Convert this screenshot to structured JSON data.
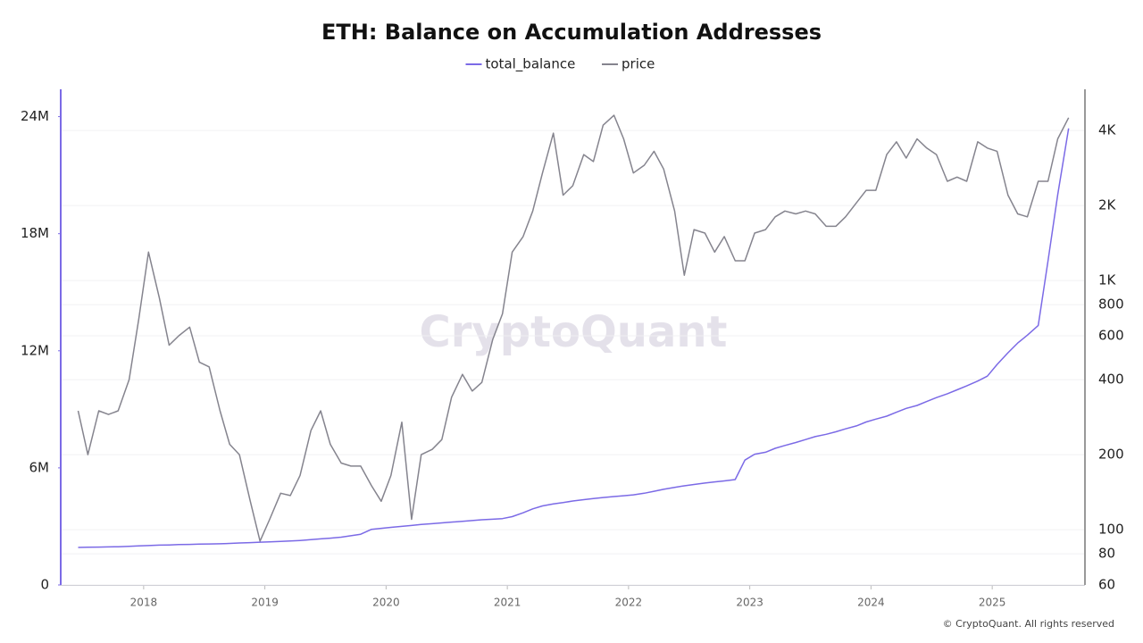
{
  "chart_data": {
    "type": "line",
    "title": "ETH: Balance on Accumulation Addresses",
    "watermark": "CryptoQuant",
    "credit": "© CryptoQuant. All rights reserved",
    "legend": "top",
    "grid": "y2",
    "y2scale": "log",
    "x": [
      2017.46,
      2017.54,
      2017.63,
      2017.71,
      2017.79,
      2017.88,
      2017.96,
      2018.04,
      2018.13,
      2018.21,
      2018.29,
      2018.38,
      2018.46,
      2018.54,
      2018.63,
      2018.71,
      2018.79,
      2018.88,
      2018.96,
      2019.04,
      2019.13,
      2019.21,
      2019.29,
      2019.38,
      2019.46,
      2019.54,
      2019.63,
      2019.71,
      2019.79,
      2019.88,
      2019.96,
      2020.04,
      2020.13,
      2020.21,
      2020.29,
      2020.38,
      2020.46,
      2020.54,
      2020.63,
      2020.71,
      2020.79,
      2020.88,
      2020.96,
      2021.04,
      2021.13,
      2021.21,
      2021.29,
      2021.38,
      2021.46,
      2021.54,
      2021.63,
      2021.71,
      2021.79,
      2021.88,
      2021.96,
      2022.04,
      2022.13,
      2022.21,
      2022.29,
      2022.38,
      2022.46,
      2022.54,
      2022.63,
      2022.71,
      2022.79,
      2022.88,
      2022.96,
      2023.04,
      2023.13,
      2023.21,
      2023.29,
      2023.38,
      2023.46,
      2023.54,
      2023.63,
      2023.71,
      2023.79,
      2023.88,
      2023.96,
      2024.04,
      2024.13,
      2024.21,
      2024.29,
      2024.38,
      2024.46,
      2024.54,
      2024.63,
      2024.71,
      2024.79,
      2024.88,
      2024.96,
      2025.04,
      2025.13,
      2025.21,
      2025.29,
      2025.38,
      2025.46,
      2025.54,
      2025.63
    ],
    "xlim": [
      2017.316,
      2025.765
    ],
    "xticks": [
      2018,
      2019,
      2020,
      2021,
      2022,
      2023,
      2024,
      2025
    ],
    "ylim": [
      0,
      25400000
    ],
    "yticks": [
      0,
      {
        "value": 6000000,
        "label": "6M"
      },
      {
        "value": 12000000,
        "label": "12M"
      },
      {
        "value": 18000000,
        "label": "18M"
      },
      {
        "value": 24000000,
        "label": "24M"
      }
    ],
    "y2lim": [
      60,
      5850
    ],
    "y2ticks": [
      60,
      80,
      100,
      200,
      400,
      600,
      800,
      {
        "value": 1000,
        "label": "1K"
      },
      {
        "value": 2000,
        "label": "2K"
      },
      {
        "value": 4000,
        "label": "4K"
      }
    ],
    "series": [
      {
        "name": "total_balance",
        "color": "#7b6ae6",
        "axis": "y",
        "values": [
          1920000,
          1930000,
          1940000,
          1950000,
          1960000,
          1980000,
          2000000,
          2020000,
          2040000,
          2050000,
          2070000,
          2080000,
          2090000,
          2100000,
          2110000,
          2130000,
          2150000,
          2170000,
          2190000,
          2210000,
          2230000,
          2250000,
          2280000,
          2320000,
          2360000,
          2400000,
          2450000,
          2520000,
          2600000,
          2850000,
          2900000,
          2950000,
          3000000,
          3050000,
          3100000,
          3140000,
          3180000,
          3220000,
          3260000,
          3300000,
          3340000,
          3370000,
          3400000,
          3500000,
          3700000,
          3900000,
          4050000,
          4150000,
          4220000,
          4300000,
          4370000,
          4430000,
          4480000,
          4530000,
          4570000,
          4620000,
          4700000,
          4800000,
          4900000,
          5000000,
          5080000,
          5150000,
          5220000,
          5280000,
          5330000,
          5400000,
          6400000,
          6700000,
          6800000,
          7000000,
          7150000,
          7300000,
          7450000,
          7600000,
          7720000,
          7850000,
          8000000,
          8150000,
          8350000,
          8500000,
          8650000,
          8850000,
          9050000,
          9200000,
          9400000,
          9600000,
          9800000,
          10000000,
          10200000,
          10450000,
          10700000,
          11300000,
          11900000,
          12400000,
          12800000,
          13300000,
          16600000,
          20000000,
          23400000
        ]
      },
      {
        "name": "price",
        "color": "#85848e",
        "axis": "y2",
        "values": [
          300,
          200,
          300,
          290,
          300,
          400,
          700,
          1300,
          850,
          550,
          600,
          650,
          470,
          450,
          300,
          220,
          200,
          130,
          90,
          110,
          140,
          137,
          165,
          250,
          300,
          220,
          185,
          180,
          180,
          150,
          130,
          165,
          270,
          110,
          200,
          210,
          230,
          340,
          420,
          360,
          390,
          580,
          735,
          1300,
          1500,
          1900,
          2700,
          3900,
          2200,
          2400,
          3200,
          3000,
          4200,
          4600,
          3700,
          2700,
          2900,
          3300,
          2800,
          1900,
          1050,
          1600,
          1550,
          1300,
          1500,
          1200,
          1200,
          1550,
          1600,
          1800,
          1900,
          1850,
          1900,
          1850,
          1650,
          1650,
          1800,
          2050,
          2300,
          2300,
          3200,
          3600,
          3100,
          3700,
          3400,
          3200,
          2500,
          2600,
          2500,
          3600,
          3400,
          3300,
          2200,
          1850,
          1800,
          2500,
          2500,
          3700,
          4500
        ]
      }
    ]
  }
}
